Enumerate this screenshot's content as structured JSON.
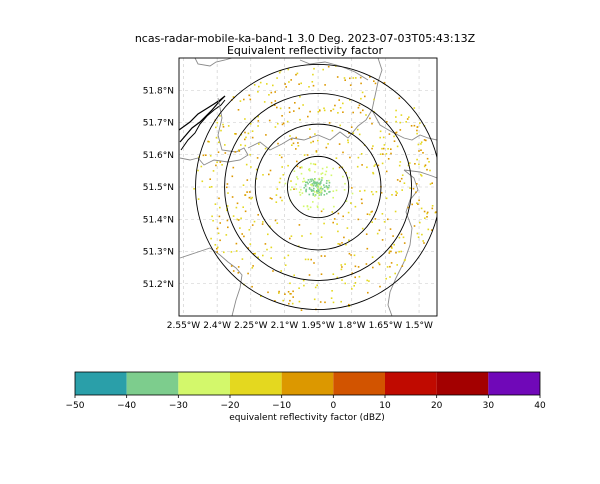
{
  "chart_data": {
    "type": "scatter",
    "title": "ncas-radar-mobile-ka-band-1 3.0 Deg. 2023-07-03T05:43:13Z",
    "subtitle": "Equivalent reflectivity factor",
    "x_ticks": [
      "2.55°W",
      "2.4°W",
      "2.25°W",
      "2.1°W",
      "1.95°W",
      "1.8°W",
      "1.65°W",
      "1.5°W"
    ],
    "x_tick_values": [
      -2.55,
      -2.4,
      -2.25,
      -2.1,
      -1.95,
      -1.8,
      -1.65,
      -1.5
    ],
    "y_ticks": [
      "51.8°N",
      "51.7°N",
      "51.6°N",
      "51.5°N",
      "51.4°N",
      "51.3°N",
      "51.2°N"
    ],
    "y_tick_values": [
      51.8,
      51.7,
      51.6,
      51.5,
      51.4,
      51.3,
      51.2
    ],
    "xlim": [
      -2.57,
      -1.42
    ],
    "ylim": [
      51.1,
      51.9
    ],
    "grid": true,
    "radar_center": {
      "lon": -1.95,
      "lat": 51.5
    },
    "range_rings_lat_radius": [
      0.095,
      0.195,
      0.29,
      0.38
    ],
    "colorbar": {
      "label": "equivalent reflectivity factor (dBZ)",
      "ticks": [
        "−50",
        "−40",
        "−30",
        "−20",
        "−10",
        "0",
        "10",
        "20",
        "30",
        "40"
      ],
      "tick_values": [
        -50,
        -40,
        -30,
        -20,
        -10,
        0,
        10,
        20,
        30,
        40
      ],
      "colors": [
        "#2a9fa9",
        "#7dcd8d",
        "#d3f86b",
        "#e4d81f",
        "#dc9800",
        "#d25400",
        "#c00a00",
        "#a30000",
        "#7008b8"
      ]
    },
    "point_groups": [
      {
        "dbz_range": [
          -40,
          -30
        ],
        "color": "#7dcd8d",
        "region": "near radar",
        "approx_count": 90
      },
      {
        "dbz_range": [
          -30,
          -20
        ],
        "color": "#d3f86b",
        "region": "near radar",
        "approx_count": 70
      },
      {
        "dbz_range": [
          -20,
          -10
        ],
        "color": "#e4d81f",
        "region": "scattered",
        "approx_count": 320
      },
      {
        "dbz_range": [
          -10,
          0
        ],
        "color": "#dc9800",
        "region": "scattered",
        "approx_count": 260
      }
    ]
  }
}
